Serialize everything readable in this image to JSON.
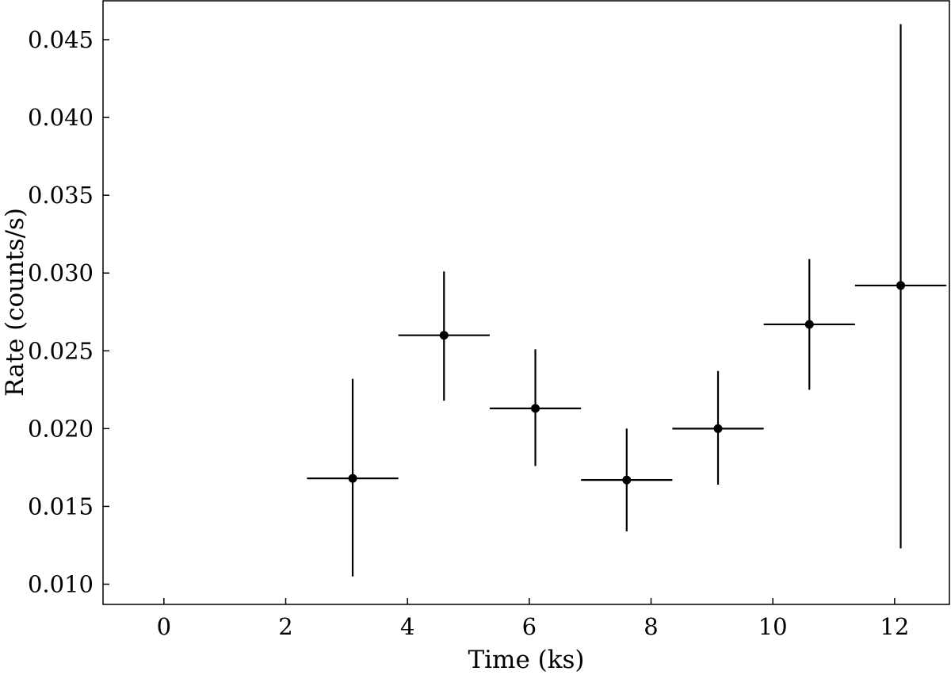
{
  "chart_data": {
    "type": "scatter",
    "title": "",
    "xlabel": "Time (ks)",
    "ylabel": "Rate (counts/s)",
    "xlim": [
      -1.0,
      12.9
    ],
    "ylim": [
      0.0087,
      0.0475
    ],
    "xticks": [
      0,
      2,
      4,
      6,
      8,
      10,
      12
    ],
    "xtick_labels": [
      "0",
      "2",
      "4",
      "6",
      "8",
      "10",
      "12"
    ],
    "yticks": [
      0.01,
      0.015,
      0.02,
      0.025,
      0.03,
      0.035,
      0.04,
      0.045
    ],
    "ytick_labels": [
      "0.010",
      "0.015",
      "0.020",
      "0.025",
      "0.030",
      "0.035",
      "0.040",
      "0.045"
    ],
    "grid": false,
    "legend": "none",
    "marker_color": "#000000",
    "series": [
      {
        "x": [
          3.1,
          4.6,
          6.1,
          7.6,
          9.1,
          10.6,
          12.1
        ],
        "y": [
          0.0168,
          0.026,
          0.0213,
          0.0167,
          0.02,
          0.0267,
          0.0292
        ],
        "xerr": [
          0.75,
          0.75,
          0.75,
          0.75,
          0.75,
          0.75,
          0.75
        ],
        "yerr_low": [
          0.0063,
          0.0042,
          0.0037,
          0.0033,
          0.0036,
          0.0042,
          0.0169
        ],
        "yerr_high": [
          0.0064,
          0.0041,
          0.0038,
          0.0033,
          0.0037,
          0.0042,
          0.0168
        ]
      }
    ]
  }
}
